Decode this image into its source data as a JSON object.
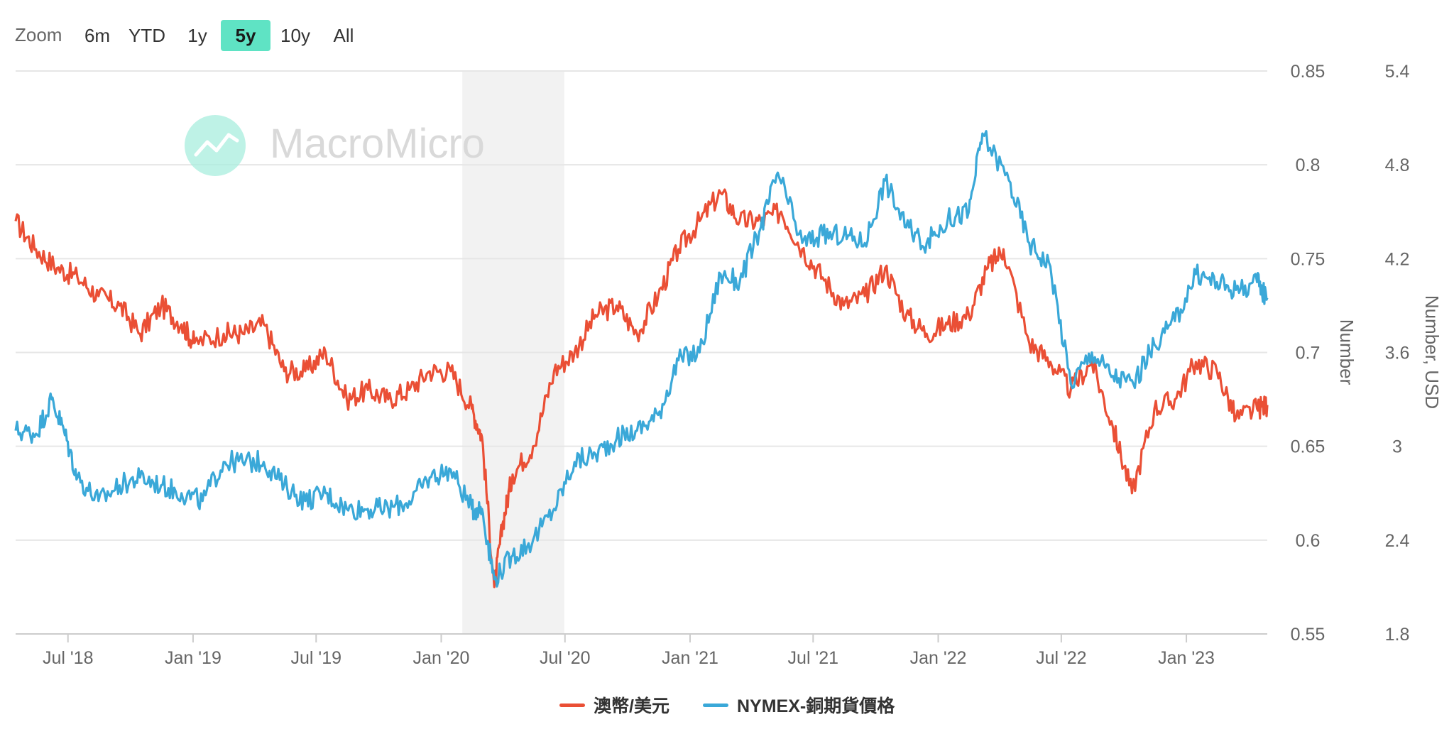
{
  "zoom": {
    "label": "Zoom",
    "buttons": [
      "6m",
      "YTD",
      "1y",
      "5y",
      "10y",
      "All"
    ],
    "active": "5y"
  },
  "watermark": "MacroMicro",
  "colors": {
    "series1": "#ea4f35",
    "series2": "#3aa8d8",
    "zoom_active": "#5fe3c4",
    "recession_band": "#f2f2f2",
    "grid": "#e6e6e6"
  },
  "chart_data": {
    "type": "line",
    "x_range": [
      "2018-04-15",
      "2023-04-30"
    ],
    "x_ticks": [
      {
        "date": "2018-07-01",
        "label": "Jul '18"
      },
      {
        "date": "2019-01-01",
        "label": "Jan '19"
      },
      {
        "date": "2019-07-01",
        "label": "Jul '19"
      },
      {
        "date": "2020-01-01",
        "label": "Jan '20"
      },
      {
        "date": "2020-07-01",
        "label": "Jul '20"
      },
      {
        "date": "2021-01-01",
        "label": "Jan '21"
      },
      {
        "date": "2021-07-01",
        "label": "Jul '21"
      },
      {
        "date": "2022-01-01",
        "label": "Jan '22"
      },
      {
        "date": "2022-07-01",
        "label": "Jul '22"
      },
      {
        "date": "2023-01-01",
        "label": "Jan '23"
      }
    ],
    "y_left": {
      "label": "Number",
      "min": 0.55,
      "max": 0.85,
      "ticks": [
        "0.55",
        "0.6",
        "0.65",
        "0.7",
        "0.75",
        "0.8",
        "0.85"
      ]
    },
    "y_right": {
      "label": "Number, USD",
      "min": 1.8,
      "max": 5.4,
      "ticks": [
        "1.8",
        "2.4",
        "3",
        "3.6",
        "4.2",
        "4.8",
        "5.4"
      ]
    },
    "recession_band": {
      "from": "2020-02-01",
      "to": "2020-06-30"
    },
    "grid": true,
    "legend_position": "bottom-center",
    "series": [
      {
        "name": "澳幣/美元",
        "axis": "left",
        "points": [
          [
            "2018-04-15",
            0.77
          ],
          [
            "2018-05-15",
            0.755
          ],
          [
            "2018-06-15",
            0.745
          ],
          [
            "2018-07-15",
            0.74
          ],
          [
            "2018-08-15",
            0.73
          ],
          [
            "2018-09-15",
            0.725
          ],
          [
            "2018-10-15",
            0.71
          ],
          [
            "2018-11-15",
            0.725
          ],
          [
            "2018-12-15",
            0.715
          ],
          [
            "2019-01-03",
            0.705
          ],
          [
            "2019-02-15",
            0.71
          ],
          [
            "2019-03-15",
            0.71
          ],
          [
            "2019-04-15",
            0.715
          ],
          [
            "2019-05-15",
            0.69
          ],
          [
            "2019-06-15",
            0.69
          ],
          [
            "2019-07-15",
            0.7
          ],
          [
            "2019-08-15",
            0.675
          ],
          [
            "2019-09-15",
            0.68
          ],
          [
            "2019-10-15",
            0.675
          ],
          [
            "2019-11-15",
            0.68
          ],
          [
            "2019-12-15",
            0.69
          ],
          [
            "2020-01-15",
            0.69
          ],
          [
            "2020-02-15",
            0.67
          ],
          [
            "2020-03-01",
            0.655
          ],
          [
            "2020-03-19",
            0.575
          ],
          [
            "2020-04-01",
            0.61
          ],
          [
            "2020-04-15",
            0.635
          ],
          [
            "2020-05-15",
            0.65
          ],
          [
            "2020-06-15",
            0.69
          ],
          [
            "2020-07-15",
            0.7
          ],
          [
            "2020-08-15",
            0.72
          ],
          [
            "2020-09-15",
            0.725
          ],
          [
            "2020-10-15",
            0.71
          ],
          [
            "2020-11-15",
            0.73
          ],
          [
            "2020-12-15",
            0.755
          ],
          [
            "2021-01-15",
            0.77
          ],
          [
            "2021-02-15",
            0.785
          ],
          [
            "2021-03-15",
            0.77
          ],
          [
            "2021-04-15",
            0.77
          ],
          [
            "2021-05-15",
            0.775
          ],
          [
            "2021-06-15",
            0.755
          ],
          [
            "2021-07-15",
            0.74
          ],
          [
            "2021-08-15",
            0.725
          ],
          [
            "2021-09-15",
            0.73
          ],
          [
            "2021-10-15",
            0.745
          ],
          [
            "2021-11-15",
            0.72
          ],
          [
            "2021-12-15",
            0.71
          ],
          [
            "2022-01-15",
            0.715
          ],
          [
            "2022-02-15",
            0.72
          ],
          [
            "2022-03-15",
            0.745
          ],
          [
            "2022-04-07",
            0.755
          ],
          [
            "2022-05-15",
            0.705
          ],
          [
            "2022-06-15",
            0.695
          ],
          [
            "2022-07-15",
            0.68
          ],
          [
            "2022-08-15",
            0.695
          ],
          [
            "2022-09-15",
            0.66
          ],
          [
            "2022-10-13",
            0.625
          ],
          [
            "2022-11-15",
            0.67
          ],
          [
            "2022-12-15",
            0.675
          ],
          [
            "2023-01-15",
            0.695
          ],
          [
            "2023-02-15",
            0.69
          ],
          [
            "2023-03-15",
            0.665
          ],
          [
            "2023-04-15",
            0.67
          ],
          [
            "2023-04-30",
            0.672
          ]
        ]
      },
      {
        "name": "NYMEX-銅期貨價格",
        "axis": "right",
        "points": [
          [
            "2018-04-15",
            3.1
          ],
          [
            "2018-05-15",
            3.08
          ],
          [
            "2018-06-07",
            3.3
          ],
          [
            "2018-06-25",
            3.1
          ],
          [
            "2018-07-15",
            2.8
          ],
          [
            "2018-08-15",
            2.65
          ],
          [
            "2018-09-15",
            2.75
          ],
          [
            "2018-10-15",
            2.8
          ],
          [
            "2018-11-15",
            2.75
          ],
          [
            "2018-12-15",
            2.7
          ],
          [
            "2019-01-15",
            2.65
          ],
          [
            "2019-02-15",
            2.9
          ],
          [
            "2019-03-15",
            2.9
          ],
          [
            "2019-04-15",
            2.9
          ],
          [
            "2019-05-15",
            2.75
          ],
          [
            "2019-06-15",
            2.65
          ],
          [
            "2019-07-15",
            2.7
          ],
          [
            "2019-08-15",
            2.6
          ],
          [
            "2019-09-15",
            2.6
          ],
          [
            "2019-10-15",
            2.6
          ],
          [
            "2019-11-15",
            2.65
          ],
          [
            "2019-12-15",
            2.8
          ],
          [
            "2020-01-15",
            2.85
          ],
          [
            "2020-02-15",
            2.6
          ],
          [
            "2020-03-01",
            2.6
          ],
          [
            "2020-03-19",
            2.15
          ],
          [
            "2020-04-15",
            2.3
          ],
          [
            "2020-05-15",
            2.4
          ],
          [
            "2020-06-15",
            2.6
          ],
          [
            "2020-07-15",
            2.9
          ],
          [
            "2020-08-15",
            2.95
          ],
          [
            "2020-09-15",
            3.05
          ],
          [
            "2020-10-15",
            3.1
          ],
          [
            "2020-11-15",
            3.2
          ],
          [
            "2020-12-15",
            3.55
          ],
          [
            "2021-01-15",
            3.6
          ],
          [
            "2021-02-15",
            4.1
          ],
          [
            "2021-03-15",
            4.05
          ],
          [
            "2021-04-15",
            4.4
          ],
          [
            "2021-05-10",
            4.75
          ],
          [
            "2021-06-15",
            4.3
          ],
          [
            "2021-07-15",
            4.35
          ],
          [
            "2021-08-15",
            4.35
          ],
          [
            "2021-09-15",
            4.3
          ],
          [
            "2021-10-15",
            4.7
          ],
          [
            "2021-11-15",
            4.4
          ],
          [
            "2021-12-15",
            4.3
          ],
          [
            "2022-01-15",
            4.45
          ],
          [
            "2022-02-15",
            4.5
          ],
          [
            "2022-03-07",
            5.0
          ],
          [
            "2022-04-15",
            4.7
          ],
          [
            "2022-05-15",
            4.3
          ],
          [
            "2022-06-15",
            4.15
          ],
          [
            "2022-07-15",
            3.4
          ],
          [
            "2022-08-15",
            3.6
          ],
          [
            "2022-09-15",
            3.45
          ],
          [
            "2022-10-15",
            3.4
          ],
          [
            "2022-11-15",
            3.65
          ],
          [
            "2022-12-15",
            3.8
          ],
          [
            "2023-01-15",
            4.1
          ],
          [
            "2023-02-15",
            4.05
          ],
          [
            "2023-03-15",
            4.0
          ],
          [
            "2023-04-15",
            4.05
          ],
          [
            "2023-04-30",
            3.95
          ]
        ]
      }
    ]
  }
}
